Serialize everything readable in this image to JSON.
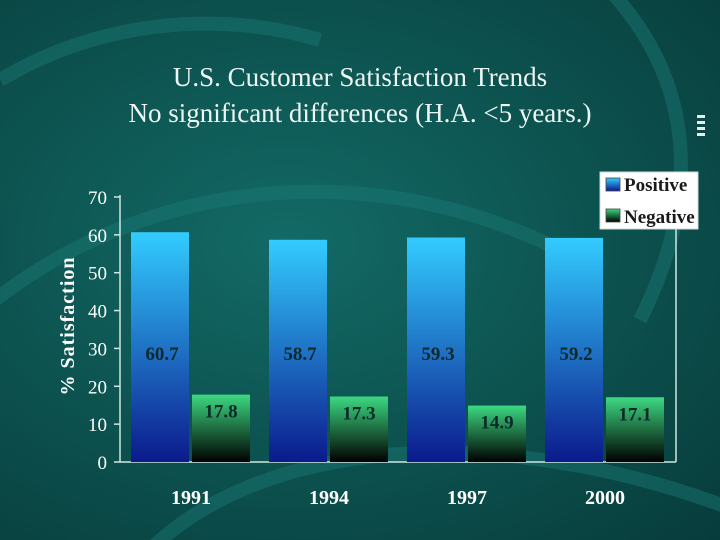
{
  "chart_data": {
    "type": "bar",
    "title": "U.S. Customer Satisfaction Trends",
    "subtitle": "No significant differences (H.A. <5 years.)",
    "xlabel": "",
    "ylabel": "% Satisfaction",
    "categories": [
      "1991",
      "1994",
      "1997",
      "2000"
    ],
    "series": [
      {
        "name": "Positive",
        "values": [
          60.7,
          58.7,
          59.3,
          59.2
        ],
        "labels": [
          "60.7",
          "58.7",
          "59.3",
          "59.2"
        ]
      },
      {
        "name": "Negative",
        "values": [
          17.8,
          17.3,
          14.9,
          17.1
        ],
        "labels": [
          "17.8",
          "17.3",
          "14.9",
          "17.1"
        ]
      }
    ],
    "ylim": [
      0,
      70
    ],
    "yticks": [
      "0",
      "10",
      "20",
      "30",
      "40",
      "50",
      "60",
      "70"
    ],
    "legend": "top-right",
    "grid": false,
    "colors": {
      "positive_top": "#33ccff",
      "positive_bottom": "#0b1a8c",
      "negative_top": "#3dd982",
      "negative_bottom": "#000000"
    }
  }
}
